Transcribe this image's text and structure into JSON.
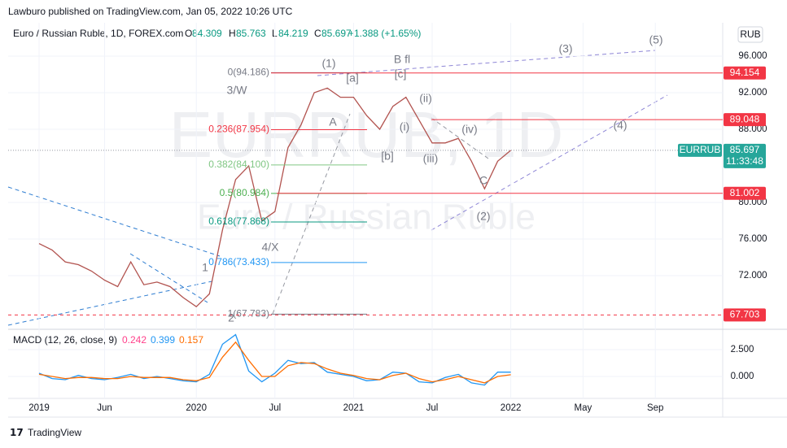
{
  "header": {
    "publisher": "Lawburo published on TradingView.com, Jan 05, 2022 10:26 UTC"
  },
  "legend": {
    "symbol": "Euro / Russian Ruble, 1D, FOREX.com",
    "open_label": "O",
    "open": 84.309,
    "high_label": "H",
    "high": 85.763,
    "low_label": "L",
    "low": 84.219,
    "close_label": "C",
    "close": 85.697,
    "change": "+1.388 (+1.65%)"
  },
  "currency_button": "RUB",
  "watermark": {
    "symbol": "EURRUB, 1D",
    "name": "Euro / Russian Ruble"
  },
  "chart_data": [
    {
      "type": "line",
      "x": [
        "2019-01",
        "2019-02",
        "2019-03",
        "2019-04",
        "2019-05",
        "2019-06",
        "2019-07",
        "2019-08",
        "2019-09",
        "2019-10",
        "2019-11",
        "2019-12",
        "2020-01",
        "2020-02",
        "2020-03",
        "2020-04",
        "2020-05",
        "2020-06",
        "2020-07",
        "2020-08",
        "2020-09",
        "2020-10",
        "2020-11",
        "2020-12",
        "2021-01",
        "2021-02",
        "2021-03",
        "2021-04",
        "2021-05",
        "2021-06",
        "2021-07",
        "2021-08",
        "2021-09",
        "2021-10",
        "2021-11",
        "2021-12",
        "2022-01"
      ],
      "series": [
        {
          "name": "EURRUB",
          "color": "#b2534f",
          "values": [
            75.5,
            74.8,
            73.5,
            73.2,
            72.5,
            71.5,
            70.8,
            73.5,
            71.0,
            71.3,
            70.8,
            69.6,
            68.6,
            70.0,
            77.0,
            82.5,
            84.0,
            78.0,
            79.0,
            86.0,
            88.5,
            92.0,
            92.5,
            91.5,
            91.5,
            89.5,
            88.0,
            90.5,
            91.5,
            89.0,
            86.5,
            86.5,
            87.0,
            84.5,
            81.5,
            84.5,
            85.697
          ]
        }
      ],
      "ylim": [
        66.31,
        99.64
      ],
      "yticks": [
        {
          "value": 96,
          "label": "96.000"
        },
        {
          "value": 92,
          "label": "92.000"
        },
        {
          "value": 88,
          "label": "88.000"
        },
        {
          "value": 80,
          "label": "80.000"
        },
        {
          "value": 76,
          "label": "76.000"
        },
        {
          "value": 72,
          "label": "72.000"
        }
      ],
      "xticks": [
        {
          "value": "2019-01",
          "label": "2019"
        },
        {
          "value": "2019-06",
          "label": "Jun"
        },
        {
          "value": "2020-01",
          "label": "2020"
        },
        {
          "value": "2020-07",
          "label": "Jul"
        },
        {
          "value": "2021-01",
          "label": "2021"
        },
        {
          "value": "2021-07",
          "label": "Jul"
        },
        {
          "value": "2022-01",
          "label": "2022"
        },
        {
          "value": "2022-05",
          "label": "May"
        },
        {
          "value": "2022-09",
          "label": "Sep"
        }
      ],
      "levels": [
        {
          "value": 94.154,
          "color": "#f23645",
          "dashed": false
        },
        {
          "value": 89.048,
          "color": "#f23645",
          "dashed": false
        },
        {
          "value": 81.002,
          "color": "#f23645",
          "dashed": false
        },
        {
          "value": 67.703,
          "color": "#f23645",
          "dashed": true
        }
      ],
      "last_price": {
        "value": 85.697,
        "time": "11:33:48",
        "color": "#26a69a"
      },
      "fib": [
        {
          "label": "0(94.186)",
          "value": 94.186,
          "color": "#787b86"
        },
        {
          "label": "0.236(87.954)",
          "value": 87.954,
          "color": "#f23645"
        },
        {
          "label": "0.382(84.100)",
          "value": 84.1,
          "color": "#81c784"
        },
        {
          "label": "0.5(80.984)",
          "value": 80.984,
          "color": "#4caf50"
        },
        {
          "label": "0.618(77.868)",
          "value": 77.868,
          "color": "#089981"
        },
        {
          "label": "0.786(73.433)",
          "value": 73.433,
          "color": "#2196f3"
        },
        {
          "label": "1(67.783)",
          "value": 67.783,
          "color": "#787b86"
        }
      ],
      "waves": [
        "(1)",
        "3/W",
        "[a]",
        "B fl",
        "[c]",
        "(ii)",
        "A",
        "(i)",
        "(iv)",
        "[b]",
        "(iii)",
        "C",
        "(2)",
        "4/X",
        "1",
        "2",
        "(3)",
        "(5)",
        "(4)"
      ]
    },
    {
      "type": "line",
      "title": "MACD (12, 26, close, 9)",
      "legend_values": [
        {
          "value": 0.242,
          "color": "#ff3f8a"
        },
        {
          "value": 0.399,
          "color": "#2196f3"
        },
        {
          "value": 0.157,
          "color": "#ff6d00"
        }
      ],
      "series": [
        {
          "color": "#2196f3",
          "values": [
            0.3,
            -0.2,
            -0.3,
            0.1,
            -0.2,
            -0.3,
            -0.1,
            0.2,
            -0.2,
            0,
            -0.2,
            -0.4,
            -0.5,
            0.2,
            3.0,
            3.9,
            0.5,
            -0.5,
            0.3,
            1.5,
            1.2,
            1.3,
            0.4,
            0.2,
            0,
            -0.4,
            -0.3,
            0.4,
            0.3,
            -0.5,
            -0.6,
            -0.1,
            0.2,
            -0.6,
            -0.8,
            0.4,
            0.399
          ]
        },
        {
          "color": "#ff6d00",
          "values": [
            0.2,
            0,
            -0.2,
            -0.1,
            -0.1,
            -0.2,
            -0.2,
            0,
            -0.1,
            -0.1,
            -0.1,
            -0.3,
            -0.4,
            -0.1,
            1.8,
            3.2,
            1.5,
            0,
            0,
            1.0,
            1.3,
            1.2,
            0.7,
            0.3,
            0.1,
            -0.2,
            -0.3,
            0.1,
            0.3,
            -0.2,
            -0.5,
            -0.3,
            0,
            -0.3,
            -0.6,
            0,
            0.157
          ]
        }
      ],
      "ylim": [
        -1.82,
        4.02
      ],
      "yticks": [
        {
          "value": 2.5,
          "label": "2.500"
        },
        {
          "value": 0,
          "label": "0.000"
        }
      ]
    }
  ],
  "footer": "TradingView"
}
